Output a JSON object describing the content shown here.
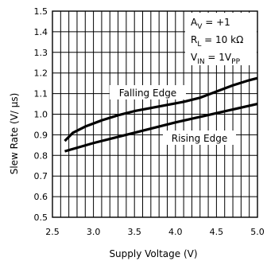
{
  "chart_data": {
    "type": "line",
    "xlabel": "Supply Voltage (V)",
    "ylabel": "Slew Rate (V/ μs)",
    "xlim": [
      2.5,
      5.0
    ],
    "ylim": [
      0.5,
      1.5
    ],
    "x_ticks": [
      "2.5",
      "3.0",
      "3.5",
      "4.0",
      "4.5",
      "5.0"
    ],
    "y_ticks": [
      "0.5",
      "0.6",
      "0.7",
      "0.8",
      "0.9",
      "1.0",
      "1.1",
      "1.2",
      "1.3",
      "1.4",
      "1.5"
    ],
    "grid": true,
    "series": [
      {
        "name": "Falling Edge",
        "x": [
          2.65,
          2.75,
          2.9,
          3.1,
          3.3,
          3.5,
          3.7,
          3.9,
          4.1,
          4.3,
          4.5,
          4.7,
          4.9,
          5.0
        ],
        "y": [
          0.87,
          0.91,
          0.94,
          0.97,
          0.995,
          1.015,
          1.03,
          1.045,
          1.06,
          1.08,
          1.11,
          1.14,
          1.165,
          1.175
        ]
      },
      {
        "name": "Rising Edge",
        "x": [
          2.65,
          3.0,
          3.5,
          4.0,
          4.5,
          5.0
        ],
        "y": [
          0.82,
          0.86,
          0.91,
          0.96,
          1.005,
          1.05
        ]
      }
    ],
    "annotations": {
      "av_main": "A",
      "av_sub": "V",
      "av_value": " = +1",
      "rl_main": "R",
      "rl_sub": "L",
      "rl_value": " = 10 kΩ",
      "vin_main": "V",
      "vin_sub": "IN",
      "vin_value": " = 1V",
      "vin_unit_sub": "PP"
    }
  }
}
